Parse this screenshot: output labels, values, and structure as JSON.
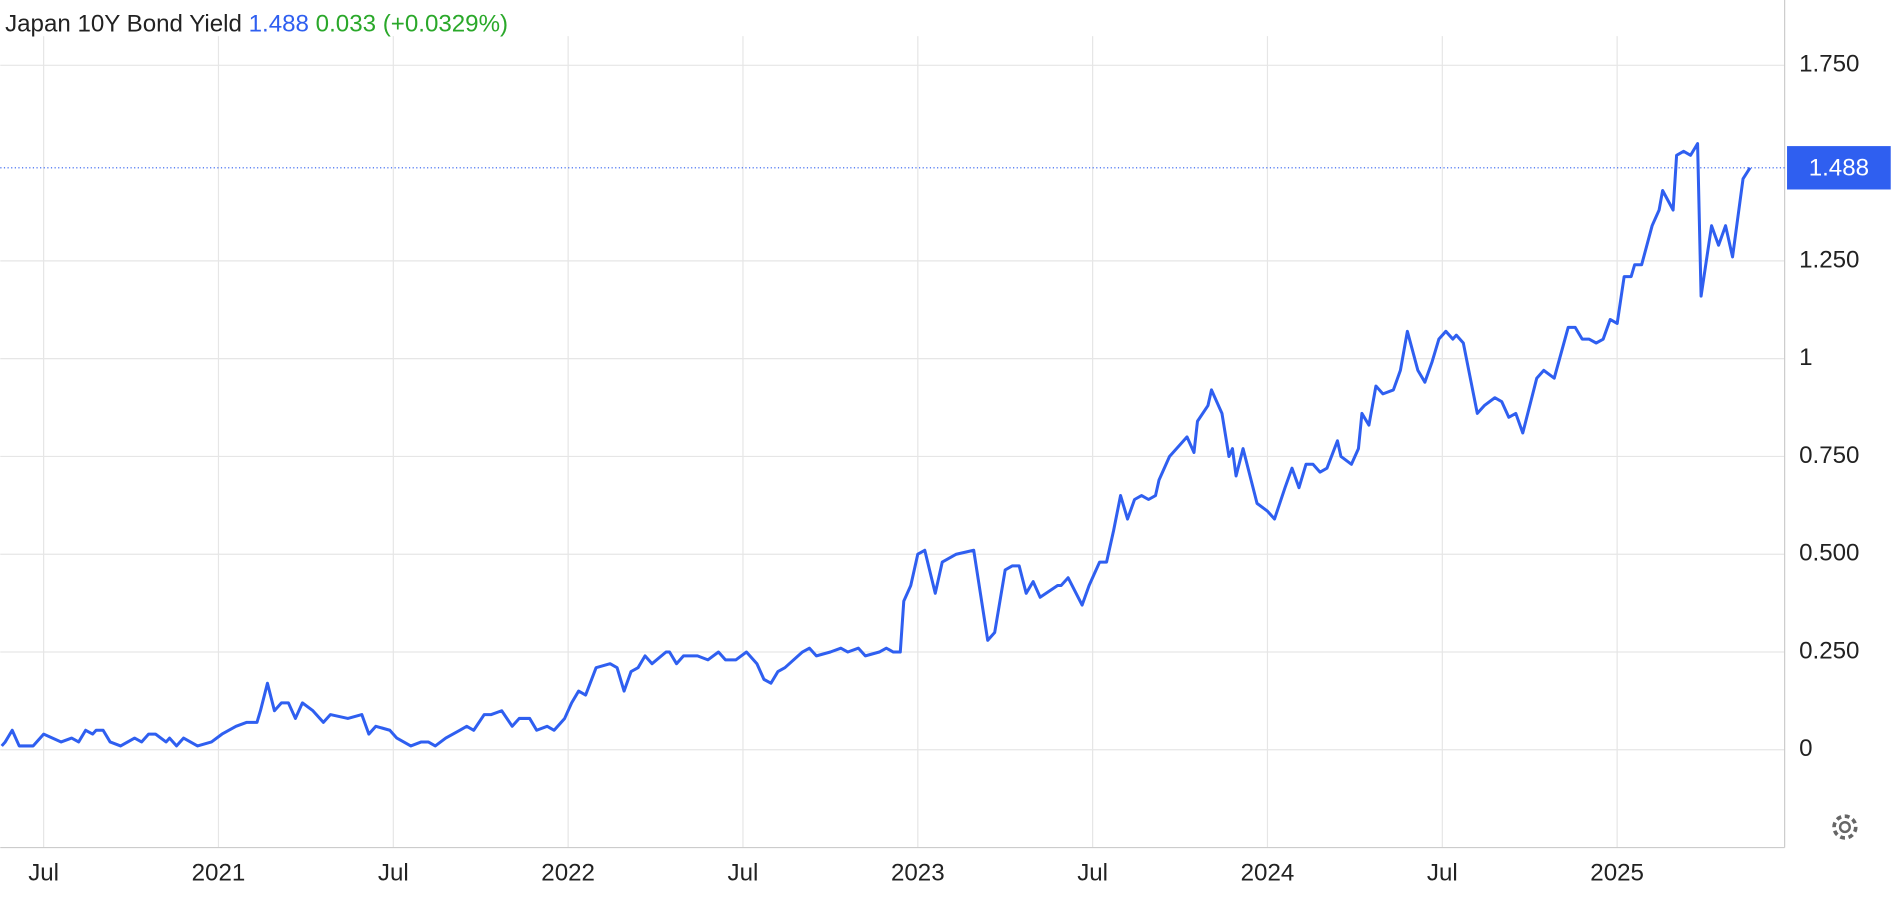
{
  "chart_data": {
    "type": "line",
    "title": "Japan 10Y Bond Yield",
    "current_value": 1.488,
    "change": 0.033,
    "change_label": "(+0.0329%)",
    "color": "#2f5ff0",
    "up_color": "#2aa82a",
    "grid": true,
    "xlim": [
      2020.376,
      2025.479
    ],
    "ylim": [
      -0.25,
      1.917
    ],
    "xticks": [
      {
        "value": 2020.5,
        "label": "Jul"
      },
      2021,
      {
        "value": 2021.5,
        "label": "Jul"
      },
      2022,
      {
        "value": 2022.5,
        "label": "Jul"
      },
      2023,
      {
        "value": 2023.5,
        "label": "Jul"
      },
      2024,
      {
        "value": 2024.5,
        "label": "Jul"
      },
      2025
    ],
    "yticks": [
      0,
      {
        "value": 0.25,
        "label": "0.250"
      },
      {
        "value": 0.5,
        "label": "0.500"
      },
      {
        "value": 0.75,
        "label": "0.750"
      },
      1,
      {
        "value": 1.25,
        "label": "1.250"
      },
      {
        "value": 1.75,
        "label": "1.750"
      }
    ],
    "x": [
      2020.38,
      2020.39,
      2020.41,
      2020.43,
      2020.47,
      2020.5,
      2020.55,
      2020.58,
      2020.6,
      2020.62,
      2020.64,
      2020.65,
      2020.67,
      2020.69,
      2020.72,
      2020.76,
      2020.78,
      2020.8,
      2020.82,
      2020.85,
      2020.86,
      2020.88,
      2020.9,
      2020.94,
      2020.98,
      2021.01,
      2021.05,
      2021.08,
      2021.11,
      2021.12,
      2021.14,
      2021.16,
      2021.18,
      2021.2,
      2021.22,
      2021.24,
      2021.27,
      2021.3,
      2021.32,
      2021.37,
      2021.41,
      2021.43,
      2021.45,
      2021.49,
      2021.51,
      2021.55,
      2021.58,
      2021.6,
      2021.62,
      2021.65,
      2021.69,
      2021.71,
      2021.73,
      2021.76,
      2021.78,
      2021.81,
      2021.84,
      2021.86,
      2021.89,
      2021.91,
      2021.94,
      2021.96,
      2021.99,
      2022.01,
      2022.03,
      2022.05,
      2022.08,
      2022.12,
      2022.14,
      2022.16,
      2022.18,
      2022.2,
      2022.22,
      2022.24,
      2022.28,
      2022.29,
      2022.31,
      2022.33,
      2022.37,
      2022.4,
      2022.43,
      2022.45,
      2022.48,
      2022.51,
      2022.54,
      2022.56,
      2022.58,
      2022.6,
      2022.62,
      2022.67,
      2022.69,
      2022.71,
      2022.75,
      2022.78,
      2022.8,
      2022.83,
      2022.85,
      2022.89,
      2022.91,
      2022.93,
      2022.95,
      2022.96,
      2022.98,
      2023.0,
      2023.02,
      2023.05,
      2023.07,
      2023.11,
      2023.16,
      2023.2,
      2023.22,
      2023.25,
      2023.27,
      2023.29,
      2023.31,
      2023.33,
      2023.35,
      2023.4,
      2023.41,
      2023.43,
      2023.47,
      2023.49,
      2023.52,
      2023.54,
      2023.56,
      2023.58,
      2023.6,
      2023.62,
      2023.64,
      2023.66,
      2023.68,
      2023.69,
      2023.72,
      2023.75,
      2023.77,
      2023.79,
      2023.8,
      2023.83,
      2023.84,
      2023.87,
      2023.89,
      2023.9,
      2023.91,
      2023.93,
      2023.97,
      2024.0,
      2024.02,
      2024.05,
      2024.07,
      2024.09,
      2024.11,
      2024.13,
      2024.15,
      2024.17,
      2024.2,
      2024.21,
      2024.24,
      2024.26,
      2024.27,
      2024.29,
      2024.31,
      2024.33,
      2024.36,
      2024.38,
      2024.4,
      2024.43,
      2024.45,
      2024.47,
      2024.49,
      2024.51,
      2024.53,
      2024.54,
      2024.56,
      2024.6,
      2024.62,
      2024.65,
      2024.67,
      2024.69,
      2024.71,
      2024.73,
      2024.75,
      2024.77,
      2024.79,
      2024.82,
      2024.86,
      2024.88,
      2024.9,
      2024.92,
      2024.94,
      2024.96,
      2024.98,
      2025.0,
      2025.02,
      2025.04,
      2025.05,
      2025.07,
      2025.1,
      2025.12,
      2025.13,
      2025.16,
      2025.17,
      2025.19,
      2025.21,
      2025.23,
      2025.24,
      2025.27,
      2025.29,
      2025.31,
      2025.33,
      2025.36,
      2025.38
    ],
    "values": [
      0.01,
      0.02,
      0.05,
      0.01,
      0.01,
      0.04,
      0.02,
      0.03,
      0.02,
      0.05,
      0.04,
      0.05,
      0.05,
      0.02,
      0.01,
      0.03,
      0.02,
      0.04,
      0.04,
      0.02,
      0.03,
      0.01,
      0.03,
      0.01,
      0.02,
      0.04,
      0.06,
      0.07,
      0.07,
      0.1,
      0.17,
      0.1,
      0.12,
      0.12,
      0.08,
      0.12,
      0.1,
      0.07,
      0.09,
      0.08,
      0.09,
      0.04,
      0.06,
      0.05,
      0.03,
      0.01,
      0.02,
      0.02,
      0.01,
      0.03,
      0.05,
      0.06,
      0.05,
      0.09,
      0.09,
      0.1,
      0.06,
      0.08,
      0.08,
      0.05,
      0.06,
      0.05,
      0.08,
      0.12,
      0.15,
      0.14,
      0.21,
      0.22,
      0.21,
      0.15,
      0.2,
      0.21,
      0.24,
      0.22,
      0.25,
      0.25,
      0.22,
      0.24,
      0.24,
      0.23,
      0.25,
      0.23,
      0.23,
      0.25,
      0.22,
      0.18,
      0.17,
      0.2,
      0.21,
      0.25,
      0.26,
      0.24,
      0.25,
      0.26,
      0.25,
      0.26,
      0.24,
      0.25,
      0.26,
      0.25,
      0.25,
      0.38,
      0.42,
      0.5,
      0.51,
      0.4,
      0.48,
      0.5,
      0.51,
      0.28,
      0.3,
      0.46,
      0.47,
      0.47,
      0.4,
      0.43,
      0.39,
      0.42,
      0.42,
      0.44,
      0.37,
      0.42,
      0.48,
      0.48,
      0.56,
      0.65,
      0.59,
      0.64,
      0.65,
      0.64,
      0.65,
      0.69,
      0.75,
      0.78,
      0.8,
      0.76,
      0.84,
      0.88,
      0.92,
      0.86,
      0.75,
      0.77,
      0.7,
      0.77,
      0.63,
      0.61,
      0.59,
      0.67,
      0.72,
      0.67,
      0.73,
      0.73,
      0.71,
      0.72,
      0.79,
      0.75,
      0.73,
      0.77,
      0.86,
      0.83,
      0.93,
      0.91,
      0.92,
      0.97,
      1.07,
      0.97,
      0.94,
      0.99,
      1.05,
      1.07,
      1.05,
      1.06,
      1.04,
      0.86,
      0.88,
      0.9,
      0.89,
      0.85,
      0.86,
      0.81,
      0.88,
      0.95,
      0.97,
      0.95,
      1.08,
      1.08,
      1.05,
      1.05,
      1.04,
      1.05,
      1.1,
      1.09,
      1.21,
      1.21,
      1.24,
      1.24,
      1.34,
      1.38,
      1.43,
      1.38,
      1.52,
      1.53,
      1.52,
      1.55,
      1.16,
      1.34,
      1.29,
      1.34,
      1.26,
      1.46,
      1.488
    ]
  }
}
